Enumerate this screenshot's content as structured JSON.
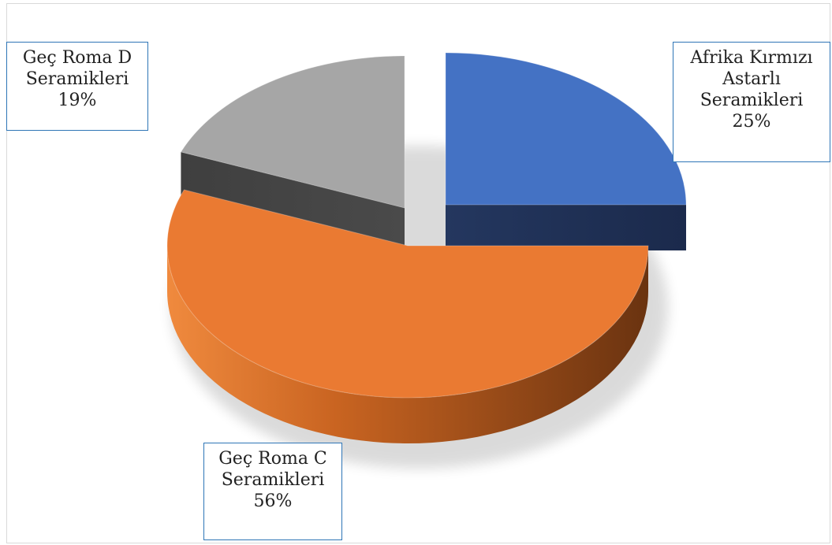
{
  "chart_data": {
    "type": "pie",
    "style": "3d-exploded",
    "slices": [
      {
        "label": "Afrika Kırmızı Astarlı Seramikleri",
        "lines": [
          "Afrika Kırmızı",
          "Astarlı",
          "Seramikleri"
        ],
        "percent_text": "25%",
        "value": 25,
        "color": "#4472c4"
      },
      {
        "label": "Geç Roma C Seramikleri",
        "lines": [
          "Geç Roma C",
          "Seramikleri"
        ],
        "percent_text": "56%",
        "value": 56,
        "color": "#ed7d31"
      },
      {
        "label": "Geç Roma D Seramikleri",
        "lines": [
          "Geç Roma D",
          "Seramikleri"
        ],
        "percent_text": "19%",
        "value": 19,
        "color": "#a5a5a5"
      }
    ]
  }
}
